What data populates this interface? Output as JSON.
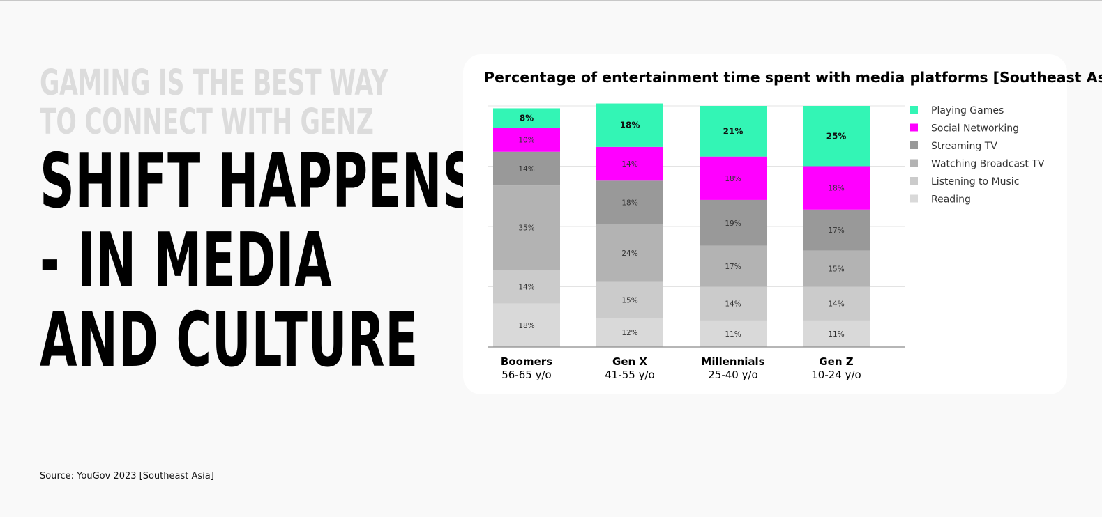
{
  "kicker": {
    "line1": "GAMING IS THE BEST WAY",
    "line2": "TO CONNECT WITH GENZ"
  },
  "headline": {
    "line1": "SHIFT HAPPENS",
    "line2": "- IN MEDIA",
    "line3": "AND CULTURE"
  },
  "source": "Source: YouGov 2023 [Southeast Asia]",
  "chart_data": {
    "type": "bar",
    "stacked": true,
    "title": "Percentage of entertainment time spent with media platforms [Southeast Asia]",
    "xlabel": "",
    "ylabel": "",
    "ylim": [
      0,
      100
    ],
    "grid": true,
    "legend_position": "right",
    "categories": [
      {
        "name": "Boomers",
        "age": "56-65 y/o"
      },
      {
        "name": "Gen X",
        "age": "41-55 y/o"
      },
      {
        "name": "Millennials",
        "age": "25-40 y/o"
      },
      {
        "name": "Gen Z",
        "age": "10-24 y/o"
      }
    ],
    "series": [
      {
        "name": "Reading",
        "color": "#d9d9d9",
        "values": [
          18,
          12,
          11,
          11
        ],
        "labels": [
          "18%",
          "12%",
          "11%",
          "11%"
        ]
      },
      {
        "name": "Listening to Music",
        "color": "#cbcbcb",
        "values": [
          14,
          15,
          14,
          14
        ],
        "labels": [
          "14%",
          "15%",
          "14%",
          "14%"
        ]
      },
      {
        "name": "Watching Broadcast TV",
        "color": "#b3b3b3",
        "values": [
          35,
          24,
          17,
          15
        ],
        "labels": [
          "35%",
          "24%",
          "17%",
          "15%"
        ]
      },
      {
        "name": "Streaming TV",
        "color": "#999999",
        "values": [
          14,
          18,
          19,
          17
        ],
        "labels": [
          "14%",
          "18%",
          "19%",
          "17%"
        ]
      },
      {
        "name": "Social Networking",
        "color": "#ff00ff",
        "values": [
          10,
          14,
          18,
          18
        ],
        "labels": [
          "10%",
          "14%",
          "18%",
          "18%"
        ]
      },
      {
        "name": "Playing Games",
        "color": "#33f5b5",
        "values": [
          8,
          18,
          21,
          25
        ],
        "labels": [
          "8%",
          "18%",
          "21%",
          "25%"
        ]
      }
    ],
    "legend_order": [
      "Playing Games",
      "Social Networking",
      "Streaming TV",
      "Watching Broadcast TV",
      "Listening to Music",
      "Reading"
    ]
  }
}
